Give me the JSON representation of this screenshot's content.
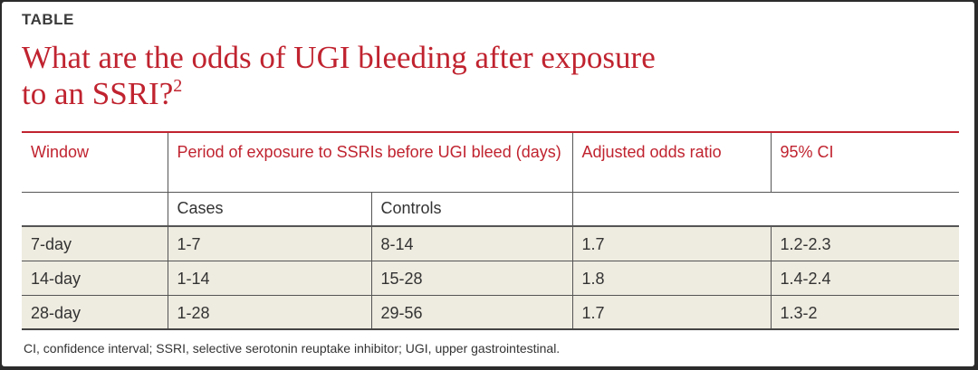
{
  "label": "TABLE",
  "title": {
    "text": "What are the odds of UGI bleeding after exposure to an SSRI?",
    "ref": "2"
  },
  "table": {
    "headers": {
      "window": "Window",
      "period": "Period of exposure to SSRIs before UGI bleed (days)",
      "odds": "Adjusted odds ratio",
      "ci": "95% CI",
      "cases": "Cases",
      "controls": "Controls"
    },
    "rows": [
      {
        "window": "7-day",
        "cases": "1-7",
        "controls": "8-14",
        "odds": "1.7",
        "ci": "1.2-2.3"
      },
      {
        "window": "14-day",
        "cases": "1-14",
        "controls": "15-28",
        "odds": "1.8",
        "ci": "1.4-2.4"
      },
      {
        "window": "28-day",
        "cases": "1-28",
        "controls": "29-56",
        "odds": "1.7",
        "ci": "1.3-2"
      }
    ]
  },
  "footnote": "CI, confidence interval; SSRI, selective serotonin reuptake inhibitor; UGI, upper gastrointestinal.",
  "colors": {
    "accent": "#c0232f",
    "row_shade": "#eeebe0"
  }
}
